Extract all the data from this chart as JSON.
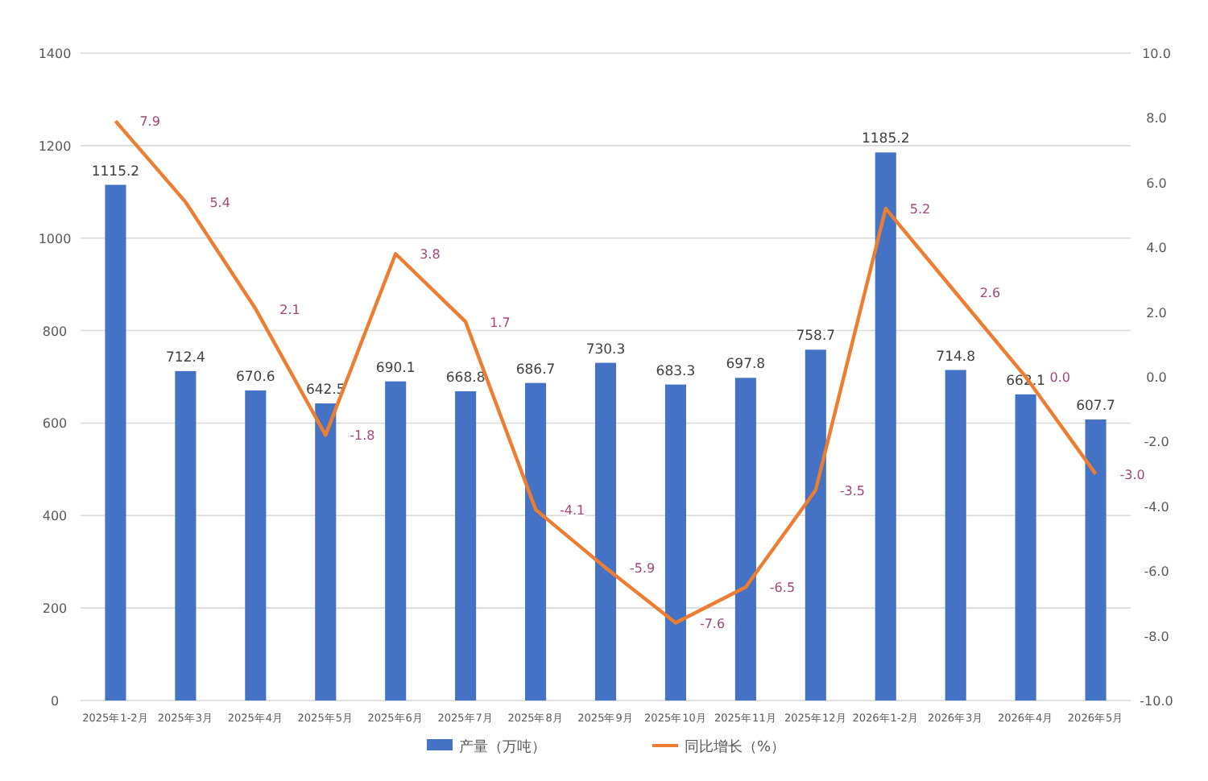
{
  "chart_data": {
    "type": "bar",
    "categories": [
      "2025年1-2月",
      "2025年3月",
      "2025年4月",
      "2025年5月",
      "2025年6月",
      "2025年7月",
      "2025年8月",
      "2025年9月",
      "2025年10月",
      "2025年11月",
      "2025年12月",
      "2026年1-2月",
      "2026年3月",
      "2026年4月",
      "2026年5月"
    ],
    "series": [
      {
        "name": "产量（万吨）",
        "color": "#4472c4",
        "values": [
          1115.2,
          712.4,
          670.6,
          642.5,
          690.1,
          668.8,
          686.7,
          730.3,
          683.3,
          697.8,
          758.7,
          1185.2,
          714.8,
          662.1,
          607.7
        ],
        "value_labels": [
          "1115.2",
          "712.4",
          "670.6",
          "642.5",
          "690.1",
          "668.8",
          "686.7",
          "730.3",
          "683.3",
          "697.8",
          "758.7",
          "1185.2",
          "714.8",
          "662.1",
          "607.7"
        ]
      },
      {
        "name": "同比增长（%）",
        "type": "line",
        "axis": "y2",
        "color": "#ed7d31",
        "values": [
          7.9,
          5.4,
          2.1,
          -1.8,
          3.8,
          1.7,
          -4.1,
          -5.9,
          -7.6,
          -6.5,
          -3.5,
          5.2,
          2.6,
          0.0,
          -3.0
        ],
        "value_labels": [
          "7.9",
          "5.4",
          "2.1",
          "-1.8",
          "3.8",
          "1.7",
          "-4.1",
          "-5.9",
          "-7.6",
          "-6.5",
          "-3.5",
          "5.2",
          "2.6",
          "0.0",
          "-3.0"
        ]
      }
    ],
    "ylim": [
      0,
      1400
    ],
    "yticks": [
      0,
      200,
      400,
      600,
      800,
      1000,
      1200,
      1400
    ],
    "y2lim": [
      -10,
      10
    ],
    "y2ticks": [
      {
        "value": -10,
        "label": "-10.0"
      },
      {
        "value": -8,
        "label": "-8.0"
      },
      {
        "value": -6,
        "label": "-6.0"
      },
      {
        "value": -4,
        "label": "-4.0"
      },
      {
        "value": -2,
        "label": "-2.0"
      },
      {
        "value": 0,
        "label": "0.0"
      },
      {
        "value": 2,
        "label": "2.0"
      },
      {
        "value": 4,
        "label": "4.0"
      },
      {
        "value": 6,
        "label": "6.0"
      },
      {
        "value": 8,
        "label": "8.0"
      },
      {
        "value": 10,
        "label": "10.0"
      }
    ],
    "grid": "y",
    "legend": "bottom",
    "marker": "none",
    "line_style": "solid"
  }
}
